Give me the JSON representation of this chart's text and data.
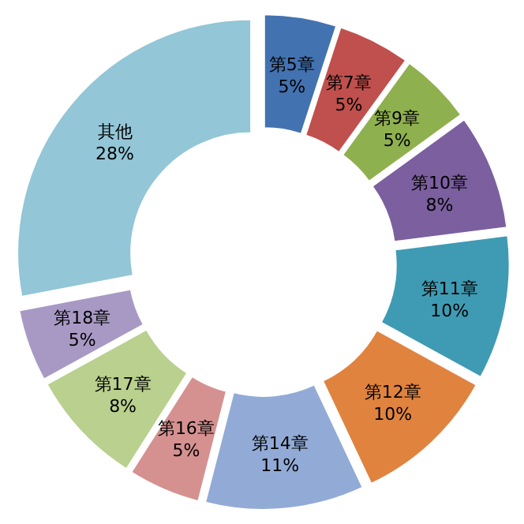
{
  "chart_data": {
    "type": "donut",
    "categories": [
      "第5章",
      "第7章",
      "第9章",
      "第10章",
      "第11章",
      "第12章",
      "第14章",
      "第16章",
      "第17章",
      "第18章",
      "其他"
    ],
    "values": [
      5,
      5,
      5,
      8,
      10,
      10,
      11,
      5,
      8,
      5,
      28
    ],
    "colors": [
      "#4372b0",
      "#c0504d",
      "#8fb04f",
      "#7b5f9f",
      "#3f9bb3",
      "#e0833f",
      "#92abd6",
      "#d59190",
      "#b9d08e",
      "#a899c4",
      "#93c6d6"
    ],
    "value_labels": [
      "5%",
      "5%",
      "5%",
      "8%",
      "10%",
      "10%",
      "11%",
      "5%",
      "8%",
      "5%",
      "28%"
    ]
  }
}
